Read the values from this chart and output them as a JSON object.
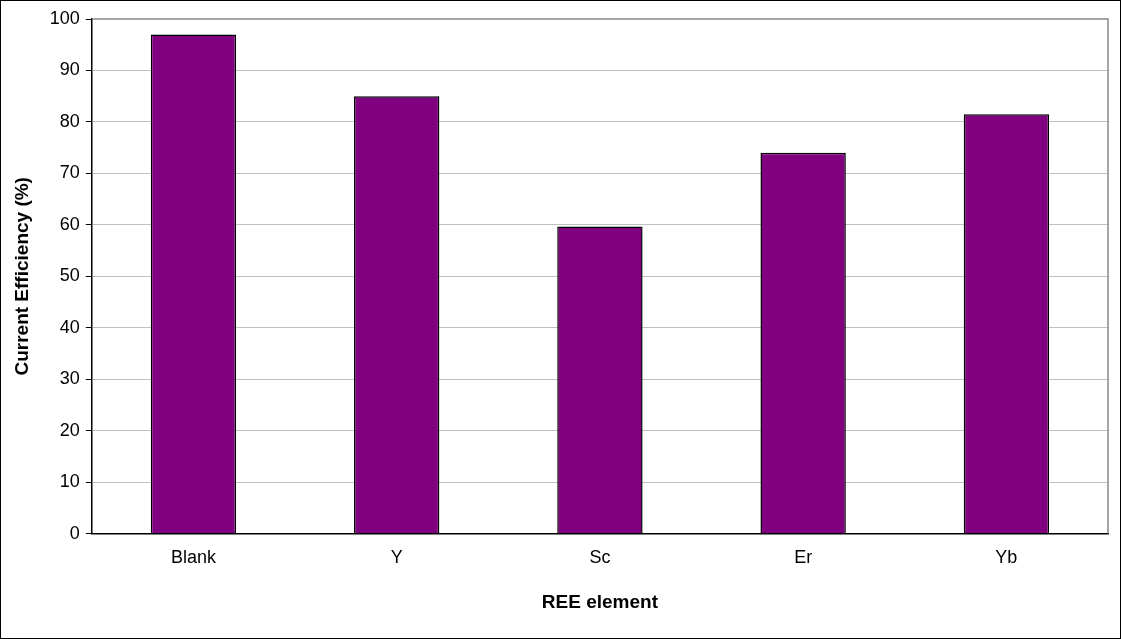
{
  "chart_data": {
    "type": "bar",
    "xlabel": "REE element",
    "ylabel": "Current Efficiency (%)",
    "categories": [
      "Blank",
      "Y",
      "Sc",
      "Er",
      "Yb"
    ],
    "values": [
      97,
      85,
      59.7,
      74,
      81.5
    ],
    "color": "#800080",
    "ylim": [
      0,
      100
    ],
    "yticks": [
      0,
      10,
      20,
      30,
      40,
      50,
      60,
      70,
      80,
      90,
      100
    ],
    "grid": "y",
    "legend": false
  }
}
